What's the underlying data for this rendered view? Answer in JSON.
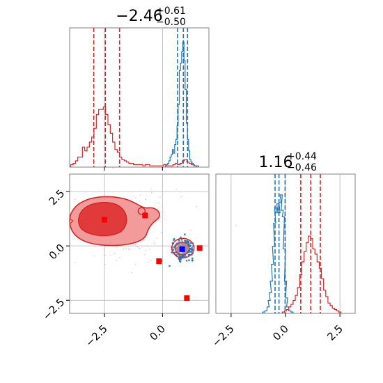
{
  "chart_data": [
    {
      "type": "histogram",
      "panel": "marginal-x",
      "title": {
        "main": "−2.46",
        "sup": "+0.61",
        "sub": "−0.50"
      },
      "xlim": [
        -4.0,
        2.0
      ],
      "grid": true,
      "series": [
        {
          "color": "#d62728",
          "bin_centers": [
            -3.9,
            -3.8,
            -3.7,
            -3.6,
            -3.5,
            -3.4,
            -3.3,
            -3.2,
            -3.1,
            -3.0,
            -2.9,
            -2.8,
            -2.7,
            -2.6,
            -2.5,
            -2.4,
            -2.3,
            -2.2,
            -2.1,
            -2.0,
            -1.9,
            -1.8,
            -1.7,
            -1.6,
            -1.5,
            -1.4,
            -1.3,
            -1.2,
            -1.1,
            -1.0,
            -0.9,
            -0.8,
            -0.7,
            -0.6,
            -0.5,
            -0.4,
            -0.3,
            -0.2,
            -0.1,
            0.0,
            0.1,
            0.2,
            0.3,
            0.4,
            0.5,
            0.6,
            0.7,
            0.8,
            0.9,
            1.0,
            1.1,
            1.2,
            1.3,
            1.4,
            1.5
          ],
          "values": [
            0.02,
            0.03,
            0.05,
            0.08,
            0.08,
            0.16,
            0.13,
            0.16,
            0.2,
            0.24,
            0.31,
            0.42,
            0.46,
            0.46,
            0.48,
            0.42,
            0.34,
            0.27,
            0.2,
            0.14,
            0.12,
            0.08,
            0.06,
            0.05,
            0.04,
            0.03,
            0.03,
            0.02,
            0.02,
            0.02,
            0.02,
            0.01,
            0.02,
            0.02,
            0.01,
            0.01,
            0.01,
            0.01,
            0.01,
            0.01,
            0.02,
            0.01,
            0.01,
            0.01,
            0.02,
            0.03,
            0.02,
            0.03,
            0.05,
            0.06,
            0.04,
            0.03,
            0.02,
            0.01,
            0.01
          ],
          "quantiles": [
            -2.96,
            -2.46,
            -1.85
          ]
        },
        {
          "color": "#1f77b4",
          "bin_centers": [
            0.15,
            0.2,
            0.25,
            0.3,
            0.35,
            0.4,
            0.45,
            0.5,
            0.55,
            0.6,
            0.65,
            0.7,
            0.75,
            0.8,
            0.85,
            0.9,
            0.95,
            1.0,
            1.05,
            1.1,
            1.15,
            1.2,
            1.25,
            1.3,
            1.35,
            1.4,
            1.45
          ],
          "values": [
            0.01,
            0.02,
            0.03,
            0.05,
            0.08,
            0.1,
            0.14,
            0.11,
            0.18,
            0.22,
            0.33,
            0.5,
            0.77,
            0.83,
            0.92,
            1.0,
            0.85,
            0.62,
            0.35,
            0.22,
            0.13,
            0.06,
            0.04,
            0.03,
            0.02,
            0.01,
            0.01
          ],
          "quantiles": [
            0.65,
            0.9,
            1.08
          ]
        }
      ]
    },
    {
      "type": "histogram",
      "panel": "marginal-y",
      "title": {
        "main": "1.16",
        "sup": "+0.44",
        "sub": "−0.46"
      },
      "xlim": [
        -3.2,
        3.2
      ],
      "xticks": [
        "−2.5",
        "0.0",
        "2.5"
      ],
      "grid": true,
      "series": [
        {
          "color": "#1f77b4",
          "bin_centers": [
            -1.0,
            -0.9,
            -0.8,
            -0.75,
            -0.7,
            -0.65,
            -0.6,
            -0.55,
            -0.5,
            -0.45,
            -0.4,
            -0.35,
            -0.3,
            -0.25,
            -0.2,
            -0.15,
            -0.1,
            -0.05,
            0.0,
            0.05,
            0.1,
            0.2,
            0.3
          ],
          "values": [
            0.01,
            0.02,
            0.05,
            0.1,
            0.16,
            0.25,
            0.38,
            0.52,
            0.7,
            0.82,
            0.78,
            0.85,
            0.78,
            0.86,
            0.92,
            0.8,
            0.75,
            0.5,
            0.25,
            0.12,
            0.05,
            0.02,
            0.01
          ],
          "quantiles": [
            -0.48,
            -0.3,
            -0.02
          ]
        },
        {
          "color": "#d62728",
          "bin_centers": [
            -0.1,
            0.0,
            0.1,
            0.2,
            0.3,
            0.4,
            0.5,
            0.6,
            0.7,
            0.8,
            0.9,
            1.0,
            1.1,
            1.2,
            1.3,
            1.4,
            1.5,
            1.6,
            1.7,
            1.8,
            1.9,
            2.0,
            2.1,
            2.2,
            2.3,
            2.4,
            2.5
          ],
          "values": [
            0.01,
            0.02,
            0.03,
            0.05,
            0.07,
            0.1,
            0.14,
            0.2,
            0.3,
            0.4,
            0.48,
            0.55,
            0.6,
            0.58,
            0.5,
            0.46,
            0.4,
            0.35,
            0.27,
            0.18,
            0.13,
            0.08,
            0.06,
            0.04,
            0.03,
            0.02,
            0.01
          ],
          "quantiles": [
            0.7,
            1.16,
            1.6
          ]
        }
      ]
    },
    {
      "type": "scatter",
      "panel": "joint",
      "xlim": [
        -4.0,
        2.0
      ],
      "ylim": [
        -3.1,
        3.3
      ],
      "xticks": [
        "−2.5",
        "0.0"
      ],
      "yticks": [
        "2.5",
        "0.0",
        "−2.5"
      ],
      "grid": true,
      "contours": {
        "color": "#d62728",
        "fill": "#f29b9b",
        "fill_inner": "#e03a3a"
      },
      "markers_red": [
        {
          "x": -2.5,
          "y": 1.2
        },
        {
          "x": -0.75,
          "y": 1.4
        },
        {
          "x": -0.15,
          "y": -0.7
        },
        {
          "x": 1.05,
          "y": -2.4
        },
        {
          "x": 1.6,
          "y": -0.1
        }
      ],
      "marker_blue": {
        "x": 0.85,
        "y": -0.15
      }
    }
  ]
}
